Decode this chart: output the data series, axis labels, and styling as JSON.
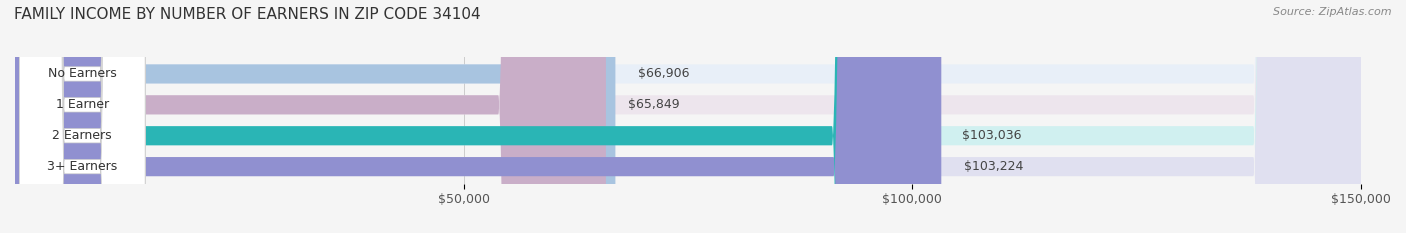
{
  "title": "FAMILY INCOME BY NUMBER OF EARNERS IN ZIP CODE 34104",
  "source": "Source: ZipAtlas.com",
  "categories": [
    "No Earners",
    "1 Earner",
    "2 Earners",
    "3+ Earners"
  ],
  "values": [
    66906,
    65849,
    103036,
    103224
  ],
  "labels": [
    "$66,906",
    "$65,849",
    "$103,036",
    "$103,224"
  ],
  "bar_colors": [
    "#a8c4e0",
    "#c9aec8",
    "#2ab5b5",
    "#9090d0"
  ],
  "bar_bg_colors": [
    "#e8eff8",
    "#ede5ed",
    "#d0f0f0",
    "#e0e0f0"
  ],
  "label_colors": [
    "#5a5a8a",
    "#7a5a7a",
    "#1a8080",
    "#6060a0"
  ],
  "xlim": [
    0,
    150000
  ],
  "xticks": [
    0,
    50000,
    100000,
    150000
  ],
  "xticklabels": [
    "$50,000",
    "$100,000",
    "$150,000"
  ],
  "background_color": "#f5f5f5",
  "bar_height": 0.62,
  "title_fontsize": 11,
  "tick_fontsize": 9,
  "label_fontsize": 9,
  "category_fontsize": 9
}
